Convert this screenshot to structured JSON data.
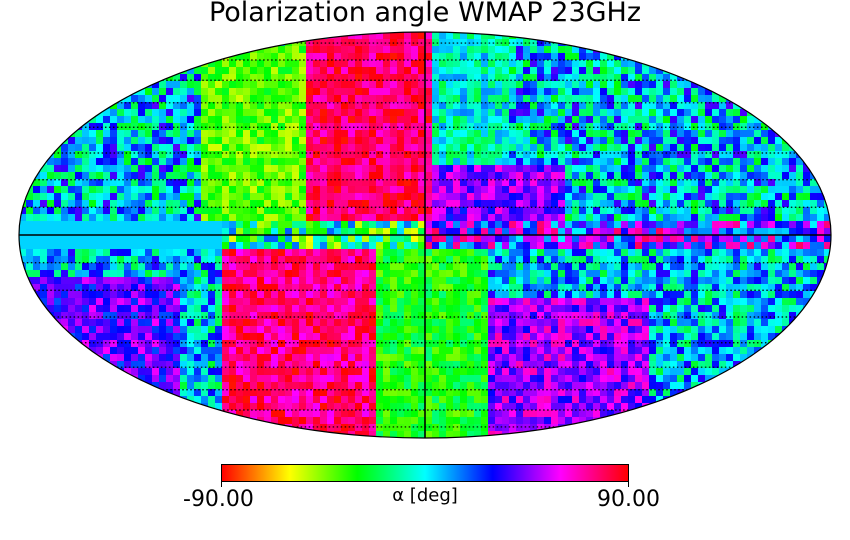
{
  "title": "Polarization angle WMAP 23GHz",
  "colorbar": {
    "min_label": "-90.00",
    "max_label": "90.00",
    "label": "α [deg]",
    "cmap_stops": [
      "#ff0000",
      "#ffff00",
      "#00ff00",
      "#00ffff",
      "#0000ff",
      "#ff00ff",
      "#ff0000"
    ]
  },
  "chart_data": {
    "type": "heatmap",
    "projection": "mollweide",
    "title": "Polarization angle WMAP 23GHz",
    "colorbar_label": "α [deg]",
    "value_range": [
      -90,
      90
    ],
    "grid": true,
    "grid_style": "dotted graticule",
    "grid_lat_step_deg": 10,
    "grid_lon_step_deg": 10,
    "approx_dominant_values": [
      {
        "region": "north galactic pole, left of centre",
        "value_deg": 75
      },
      {
        "region": "north, right of centre",
        "value_deg": 40
      },
      {
        "region": "galactic plane",
        "value_deg": 0
      },
      {
        "region": "south, left of centre",
        "value_deg": 80
      },
      {
        "region": "south, right of centre",
        "value_deg": 50
      },
      {
        "region": "outer edges",
        "value_deg": 10
      }
    ]
  }
}
